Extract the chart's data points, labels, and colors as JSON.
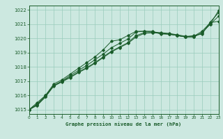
{
  "title": "Graphe pression niveau de la mer (hPa)",
  "bg_color": "#cce8e0",
  "grid_color": "#99ccbb",
  "line_color": "#1a5c2a",
  "xlim": [
    0,
    23
  ],
  "ylim": [
    1014.7,
    1022.3
  ],
  "yticks": [
    1015,
    1016,
    1017,
    1018,
    1019,
    1020,
    1021,
    1022
  ],
  "xticks": [
    0,
    1,
    2,
    3,
    4,
    5,
    6,
    7,
    8,
    9,
    10,
    11,
    12,
    13,
    14,
    15,
    16,
    17,
    18,
    19,
    20,
    21,
    22,
    23
  ],
  "series": [
    [
      1015.0,
      1015.5,
      1016.0,
      1016.8,
      1017.1,
      1017.5,
      1017.9,
      1018.3,
      1018.7,
      1019.2,
      1019.8,
      1019.9,
      1020.2,
      1020.5,
      1020.5,
      1020.5,
      1020.3,
      1020.3,
      1020.2,
      1020.1,
      1020.2,
      1020.3,
      1021.15,
      1021.8
    ],
    [
      1015.0,
      1015.4,
      1016.0,
      1016.7,
      1017.0,
      1017.4,
      1017.75,
      1018.1,
      1018.5,
      1018.9,
      1019.35,
      1019.65,
      1019.95,
      1020.45,
      1020.5,
      1020.45,
      1020.4,
      1020.35,
      1020.25,
      1020.15,
      1020.15,
      1020.5,
      1021.1,
      1021.2
    ],
    [
      1015.0,
      1015.35,
      1015.9,
      1016.7,
      1017.0,
      1017.3,
      1017.65,
      1017.95,
      1018.3,
      1018.7,
      1019.1,
      1019.4,
      1019.7,
      1020.2,
      1020.4,
      1020.4,
      1020.35,
      1020.3,
      1020.2,
      1020.1,
      1020.1,
      1020.4,
      1021.0,
      1021.55
    ],
    [
      1015.0,
      1015.3,
      1015.9,
      1016.65,
      1016.95,
      1017.25,
      1017.6,
      1017.9,
      1018.25,
      1018.65,
      1019.05,
      1019.35,
      1019.65,
      1020.1,
      1020.35,
      1020.4,
      1020.35,
      1020.3,
      1020.2,
      1020.1,
      1020.1,
      1020.4,
      1021.0,
      1021.95
    ]
  ]
}
